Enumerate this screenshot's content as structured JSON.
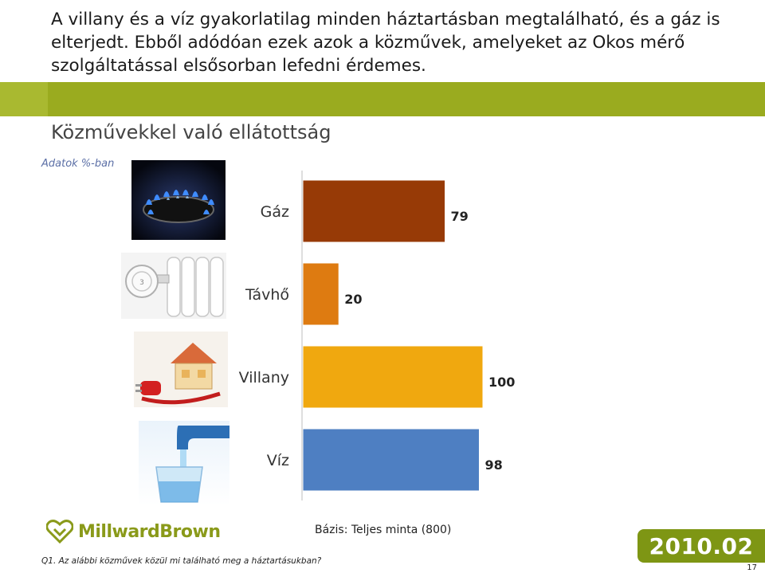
{
  "header": {
    "lead_text": "A villany és a víz gyakorlatilag minden háztartásban megtalálható, és a gáz is elterjedt. Ebből adódóan ezek azok a közművek, amelyeket az Okos mérő szolgáltatással elsősorban lefedni érdemes."
  },
  "chart_data": {
    "type": "bar",
    "orientation": "horizontal",
    "title": "Közművekkel való ellátottság",
    "unit_note": "Adatok %-ban",
    "categories": [
      "Gáz",
      "Távhő",
      "Villany",
      "Víz"
    ],
    "values": [
      79,
      20,
      100,
      98
    ],
    "value_labels": [
      "79",
      "20",
      "100",
      "98"
    ],
    "colors": [
      "#973a06",
      "#de7b11",
      "#f0a80f",
      "#4e7fc2"
    ],
    "xlim": [
      0,
      100
    ],
    "grid": false,
    "icons": [
      "gas-flame-icon",
      "radiator-icon",
      "house-plug-icon",
      "water-tap-icon"
    ]
  },
  "footer": {
    "brand": "MillwardBrown",
    "base_text": "Bázis: Teljes minta (800)",
    "question_text": "Q1. Az alábbi közművek közül mi található meg a háztartásukban?",
    "date_badge": "2010.02",
    "page_number": "17"
  },
  "colors": {
    "accent_green": "#9aab1f",
    "badge_green": "#7e9614"
  }
}
